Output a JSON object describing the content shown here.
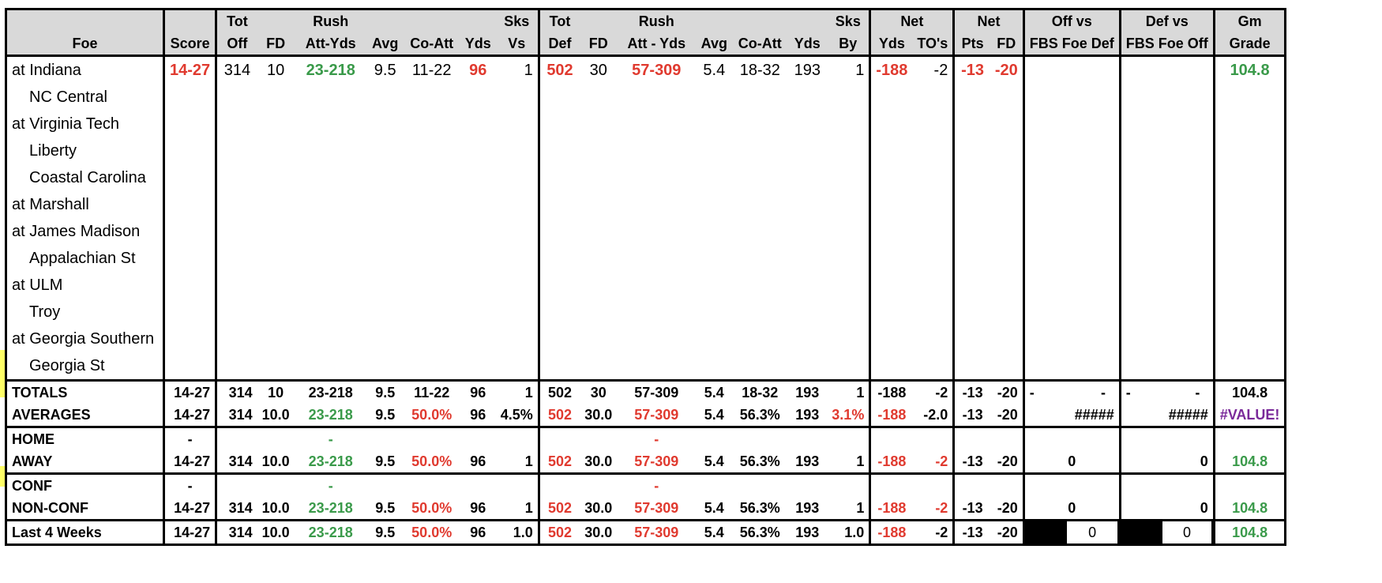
{
  "header": {
    "row1": [
      "",
      "",
      "Tot",
      "",
      "Rush",
      "",
      "",
      "",
      "Sks",
      "Tot",
      "",
      "Rush",
      "",
      "",
      "",
      "Sks",
      "Net",
      "",
      "Net",
      "",
      "Off vs",
      "Def vs",
      "Gm"
    ],
    "row2": [
      "Foe",
      "Score",
      "Off",
      "FD",
      "Att-Yds",
      "Avg",
      "Co-Att",
      "Yds",
      "Vs",
      "Def",
      "FD",
      "Att - Yds",
      "Avg",
      "Co-Att",
      "Yds",
      "By",
      "Yds",
      "TO's",
      "Pts",
      "FD",
      "FBS Foe Def",
      "FBS Foe Off",
      "Grade"
    ]
  },
  "games": [
    {
      "foe": "at Indiana",
      "away": true,
      "score": "14-27",
      "tot_off": "314",
      "fd": "10",
      "rush": "23-218",
      "avg": "9.5",
      "coatt": "11-22",
      "yds": "96",
      "sks_vs": "1",
      "tot_def": "502",
      "dfd": "30",
      "drush": "57-309",
      "davg": "5.4",
      "dcoatt": "18-32",
      "dyds": "193",
      "sks_by": "1",
      "net_yds": "-188",
      "to": "-2",
      "net_pts": "-13",
      "net_fd": "-20",
      "grade": "104.8"
    },
    {
      "foe": "NC Central",
      "away": false
    },
    {
      "foe": "at Virginia Tech",
      "away": true
    },
    {
      "foe": "Liberty",
      "away": false
    },
    {
      "foe": "Coastal Carolina",
      "away": false
    },
    {
      "foe": "at Marshall",
      "away": true
    },
    {
      "foe": "at James Madison",
      "away": true
    },
    {
      "foe": "Appalachian St",
      "away": false
    },
    {
      "foe": "at ULM",
      "away": true
    },
    {
      "foe": "Troy",
      "away": false
    },
    {
      "foe": "at Georgia Southern",
      "away": true
    },
    {
      "foe": "Georgia St",
      "away": false
    }
  ],
  "totals": {
    "label": "TOTALS",
    "score": "14-27",
    "tot_off": "314",
    "fd": "10",
    "rush": "23-218",
    "avg": "9.5",
    "coatt": "11-22",
    "yds": "96",
    "sks_vs": "1",
    "tot_def": "502",
    "dfd": "30",
    "drush": "57-309",
    "davg": "5.4",
    "dcoatt": "18-32",
    "dyds": "193",
    "sks_by": "1",
    "net_yds": "-188",
    "to": "-2",
    "net_pts": "-13",
    "net_fd": "-20",
    "off_a": "-",
    "off_b": "-",
    "def_a": "-",
    "def_b": "-",
    "grade": "104.8"
  },
  "averages": {
    "label": "AVERAGES",
    "score": "14-27",
    "tot_off": "314",
    "fd": "10.0",
    "rush": "23-218",
    "avg": "9.5",
    "pct": "50.0%",
    "yds": "96",
    "sks_vs": "4.5%",
    "tot_def": "502",
    "dfd": "30.0",
    "drush": "57-309",
    "davg": "5.4",
    "dpct": "56.3%",
    "dyds": "193",
    "sks_by": "3.1%",
    "net_yds": "-188",
    "to": "-2.0",
    "net_pts": "-13",
    "net_fd": "-20",
    "off": "#####",
    "def": "#####",
    "grade": "#VALUE!"
  },
  "home": {
    "label": "HOME",
    "score": "-",
    "rush": "-",
    "drush": "-"
  },
  "away": {
    "label": "AWAY",
    "score": "14-27",
    "tot_off": "314",
    "fd": "10.0",
    "rush": "23-218",
    "avg": "9.5",
    "pct": "50.0%",
    "yds": "96",
    "sks_vs": "1",
    "tot_def": "502",
    "dfd": "30.0",
    "drush": "57-309",
    "davg": "5.4",
    "dpct": "56.3%",
    "dyds": "193",
    "sks_by": "1",
    "net_yds": "-188",
    "to": "-2",
    "net_pts": "-13",
    "net_fd": "-20",
    "off": "0",
    "def": "0",
    "grade": "104.8"
  },
  "conf": {
    "label": "CONF",
    "score": "-",
    "rush": "-",
    "drush": "-"
  },
  "nonconf": {
    "label": "NON-CONF",
    "score": "14-27",
    "tot_off": "314",
    "fd": "10.0",
    "rush": "23-218",
    "avg": "9.5",
    "pct": "50.0%",
    "yds": "96",
    "sks_vs": "1",
    "tot_def": "502",
    "dfd": "30.0",
    "drush": "57-309",
    "davg": "5.4",
    "dpct": "56.3%",
    "dyds": "193",
    "sks_by": "1",
    "net_yds": "-188",
    "to": "-2",
    "net_pts": "-13",
    "net_fd": "-20",
    "off": "0",
    "def": "0",
    "grade": "104.8"
  },
  "last4": {
    "label": "Last 4 Weeks",
    "score": "14-27",
    "tot_off": "314",
    "fd": "10.0",
    "rush": "23-218",
    "avg": "9.5",
    "pct": "50.0%",
    "yds": "96",
    "sks_vs": "1.0",
    "tot_def": "502",
    "dfd": "30.0",
    "drush": "57-309",
    "davg": "5.4",
    "dpct": "56.3%",
    "dyds": "193",
    "sks_by": "1.0",
    "net_yds": "-188",
    "to": "-2",
    "net_pts": "-13",
    "net_fd": "-20",
    "off": "0",
    "def": "0",
    "grade": "104.8"
  },
  "colors": {
    "red": "#e03a2f",
    "green": "#3a9a4a",
    "purple": "#7a2a9a",
    "header_bg": "#d9d9d9"
  }
}
